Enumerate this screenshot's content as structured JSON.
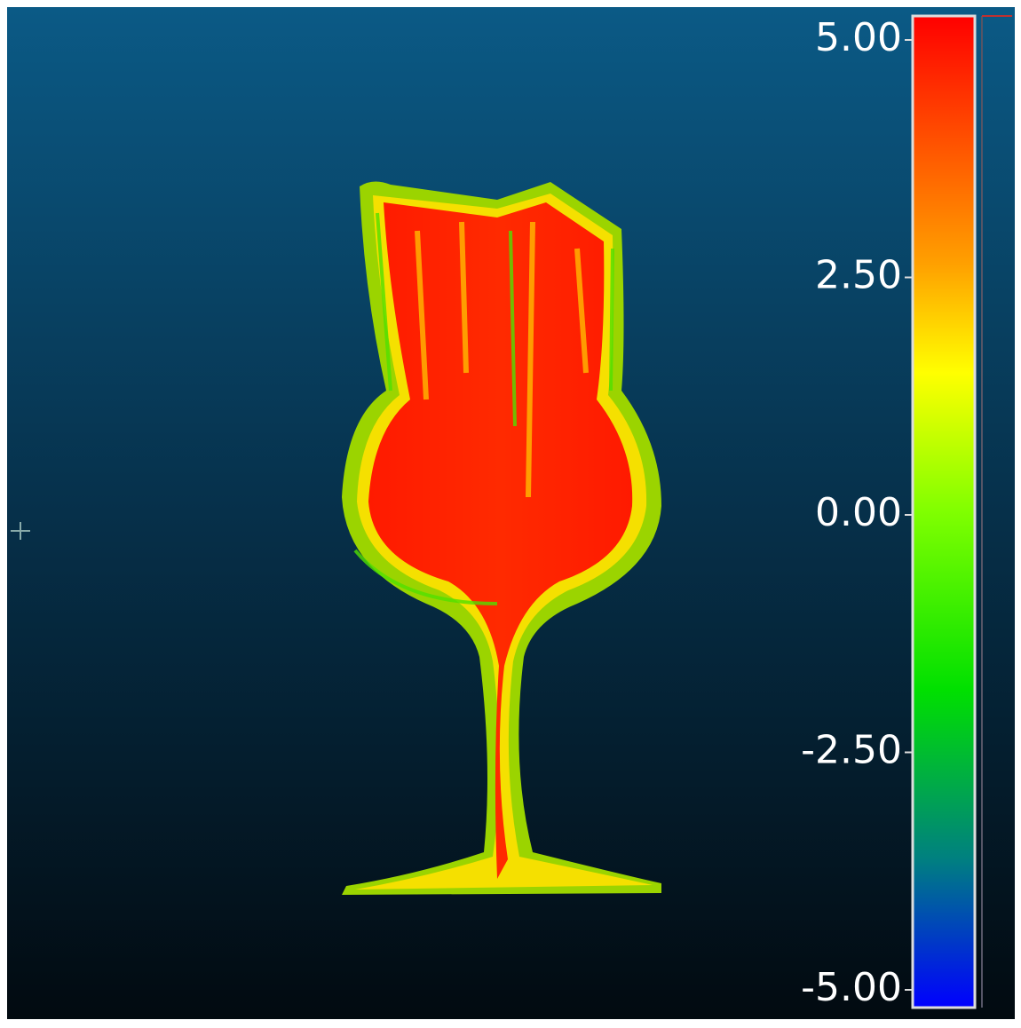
{
  "scale": {
    "ticks": [
      {
        "value": 5,
        "label": "5.00"
      },
      {
        "value": 2.5,
        "label": "2.50"
      },
      {
        "value": 0,
        "label": "0.00"
      },
      {
        "value": -2.5,
        "label": "-2.50"
      },
      {
        "value": -5,
        "label": "-5.00"
      }
    ]
  }
}
